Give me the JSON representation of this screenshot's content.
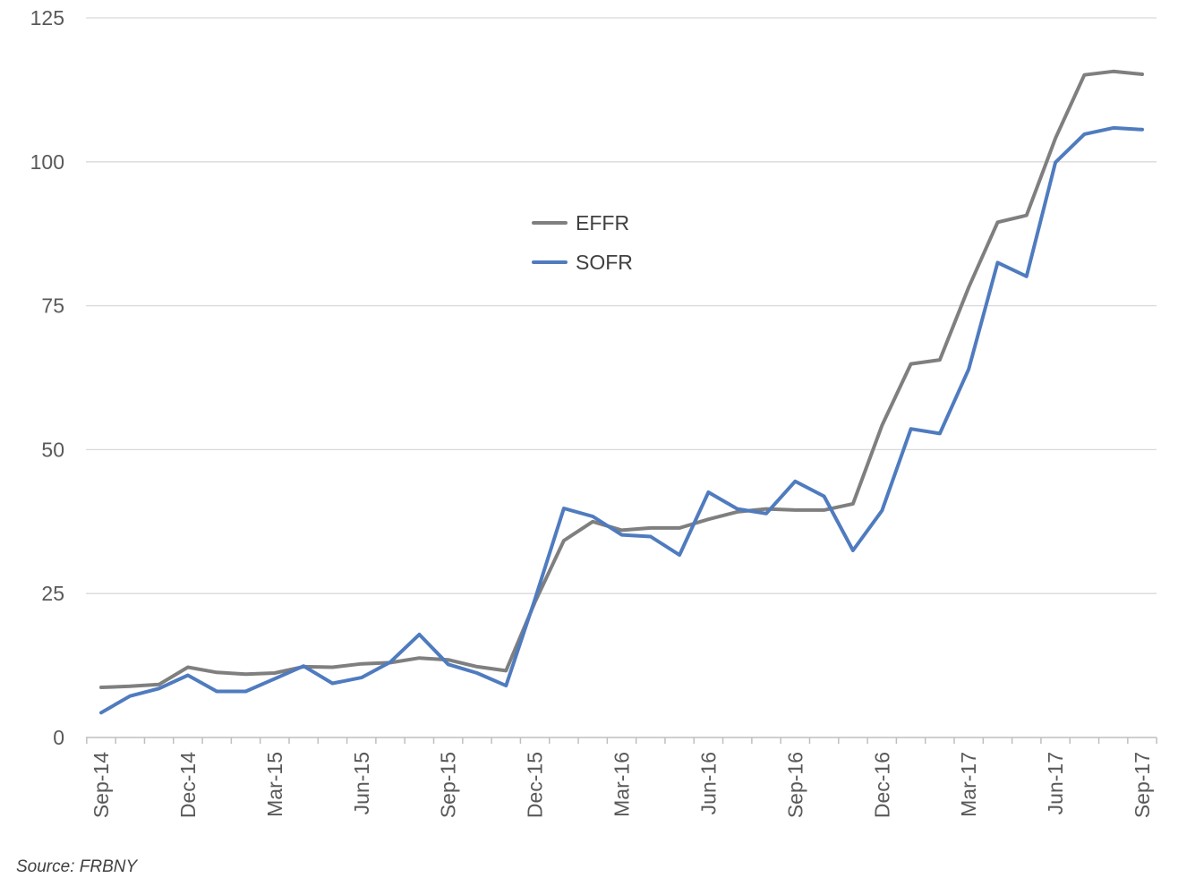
{
  "chart_data": {
    "type": "line",
    "title": "",
    "xlabel": "",
    "ylabel": "",
    "ylim": [
      0,
      125
    ],
    "yticks": [
      0,
      25,
      50,
      75,
      100,
      125
    ],
    "grid": "horizontal",
    "legend_position": "center",
    "x": [
      "Sep-14",
      "Oct-14",
      "Nov-14",
      "Dec-14",
      "Jan-15",
      "Feb-15",
      "Mar-15",
      "Apr-15",
      "May-15",
      "Jun-15",
      "Jul-15",
      "Aug-15",
      "Sep-15",
      "Oct-15",
      "Nov-15",
      "Dec-15",
      "Jan-16",
      "Feb-16",
      "Mar-16",
      "Apr-16",
      "May-16",
      "Jun-16",
      "Jul-16",
      "Aug-16",
      "Sep-16",
      "Oct-16",
      "Nov-16",
      "Dec-16",
      "Jan-17",
      "Feb-17",
      "Mar-17",
      "Apr-17",
      "May-17",
      "Jun-17",
      "Jul-17",
      "Aug-17",
      "Sep-17"
    ],
    "x_tick_labels": [
      "Sep-14",
      "Dec-14",
      "Mar-15",
      "Jun-15",
      "Sep-15",
      "Dec-15",
      "Mar-16",
      "Jun-16",
      "Sep-16",
      "Dec-16",
      "Mar-17",
      "Jun-17",
      "Sep-17"
    ],
    "series": [
      {
        "name": "EFFR",
        "color": "#7f7f7f",
        "values": [
          8.7,
          8.9,
          9.2,
          12.2,
          11.3,
          11.0,
          11.2,
          12.3,
          12.2,
          12.8,
          13.0,
          13.8,
          13.5,
          12.3,
          11.6,
          23.5,
          34.2,
          37.5,
          36.0,
          36.4,
          36.4,
          37.9,
          39.2,
          39.7,
          39.5,
          39.5,
          40.6,
          54.2,
          64.9,
          65.6,
          78.2,
          89.5,
          90.7,
          104.1,
          115.1,
          115.7,
          115.2
        ]
      },
      {
        "name": "SOFR",
        "color": "#4f7bbf",
        "values": [
          4.3,
          7.2,
          8.5,
          10.8,
          8.0,
          8.0,
          10.2,
          12.4,
          9.4,
          10.4,
          13.1,
          17.9,
          12.7,
          11.2,
          9.0,
          24.0,
          39.8,
          38.4,
          35.2,
          34.9,
          31.7,
          42.6,
          39.7,
          38.9,
          44.5,
          41.9,
          32.5,
          39.4,
          53.6,
          52.8,
          64.0,
          82.5,
          80.1,
          99.9,
          104.8,
          105.9,
          105.6
        ]
      }
    ]
  },
  "source": "Source: FRBNY"
}
